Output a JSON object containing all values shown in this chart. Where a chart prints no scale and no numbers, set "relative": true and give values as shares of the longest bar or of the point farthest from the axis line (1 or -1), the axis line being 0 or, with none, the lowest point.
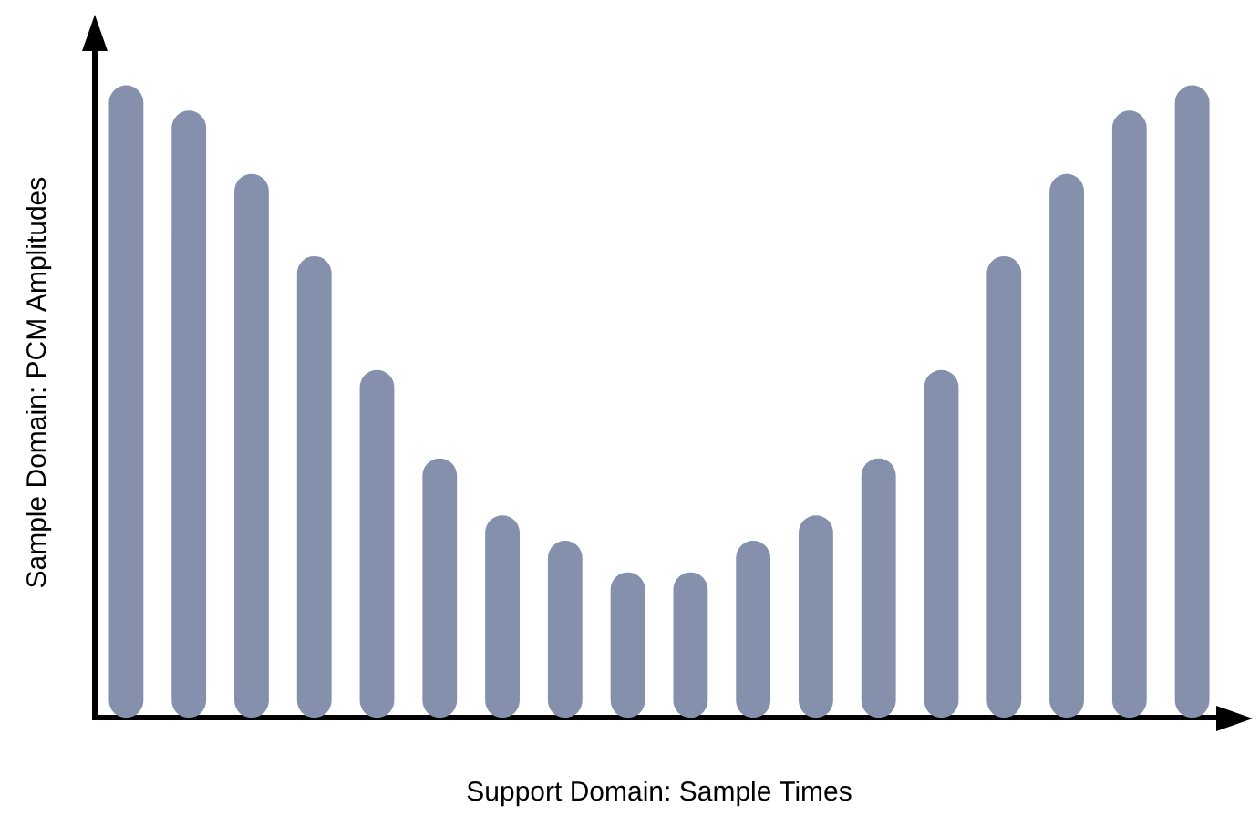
{
  "chart_data": {
    "type": "bar",
    "xlabel": "Support Domain: Sample Times",
    "ylabel": "Sample Domain: PCM Amplitudes",
    "relative": true,
    "grid": false,
    "legend": false,
    "categories": [
      null,
      null,
      null,
      null,
      null,
      null,
      null,
      null,
      null,
      null,
      null,
      null,
      null,
      null,
      null,
      null,
      null,
      null
    ],
    "values": [
      1,
      0.96,
      0.86,
      0.73,
      0.55,
      0.41,
      0.32,
      0.28,
      0.23,
      0.23,
      0.28,
      0.32,
      0.41,
      0.55,
      0.73,
      0.86,
      0.96,
      1
    ],
    "color": "#8590ad"
  }
}
